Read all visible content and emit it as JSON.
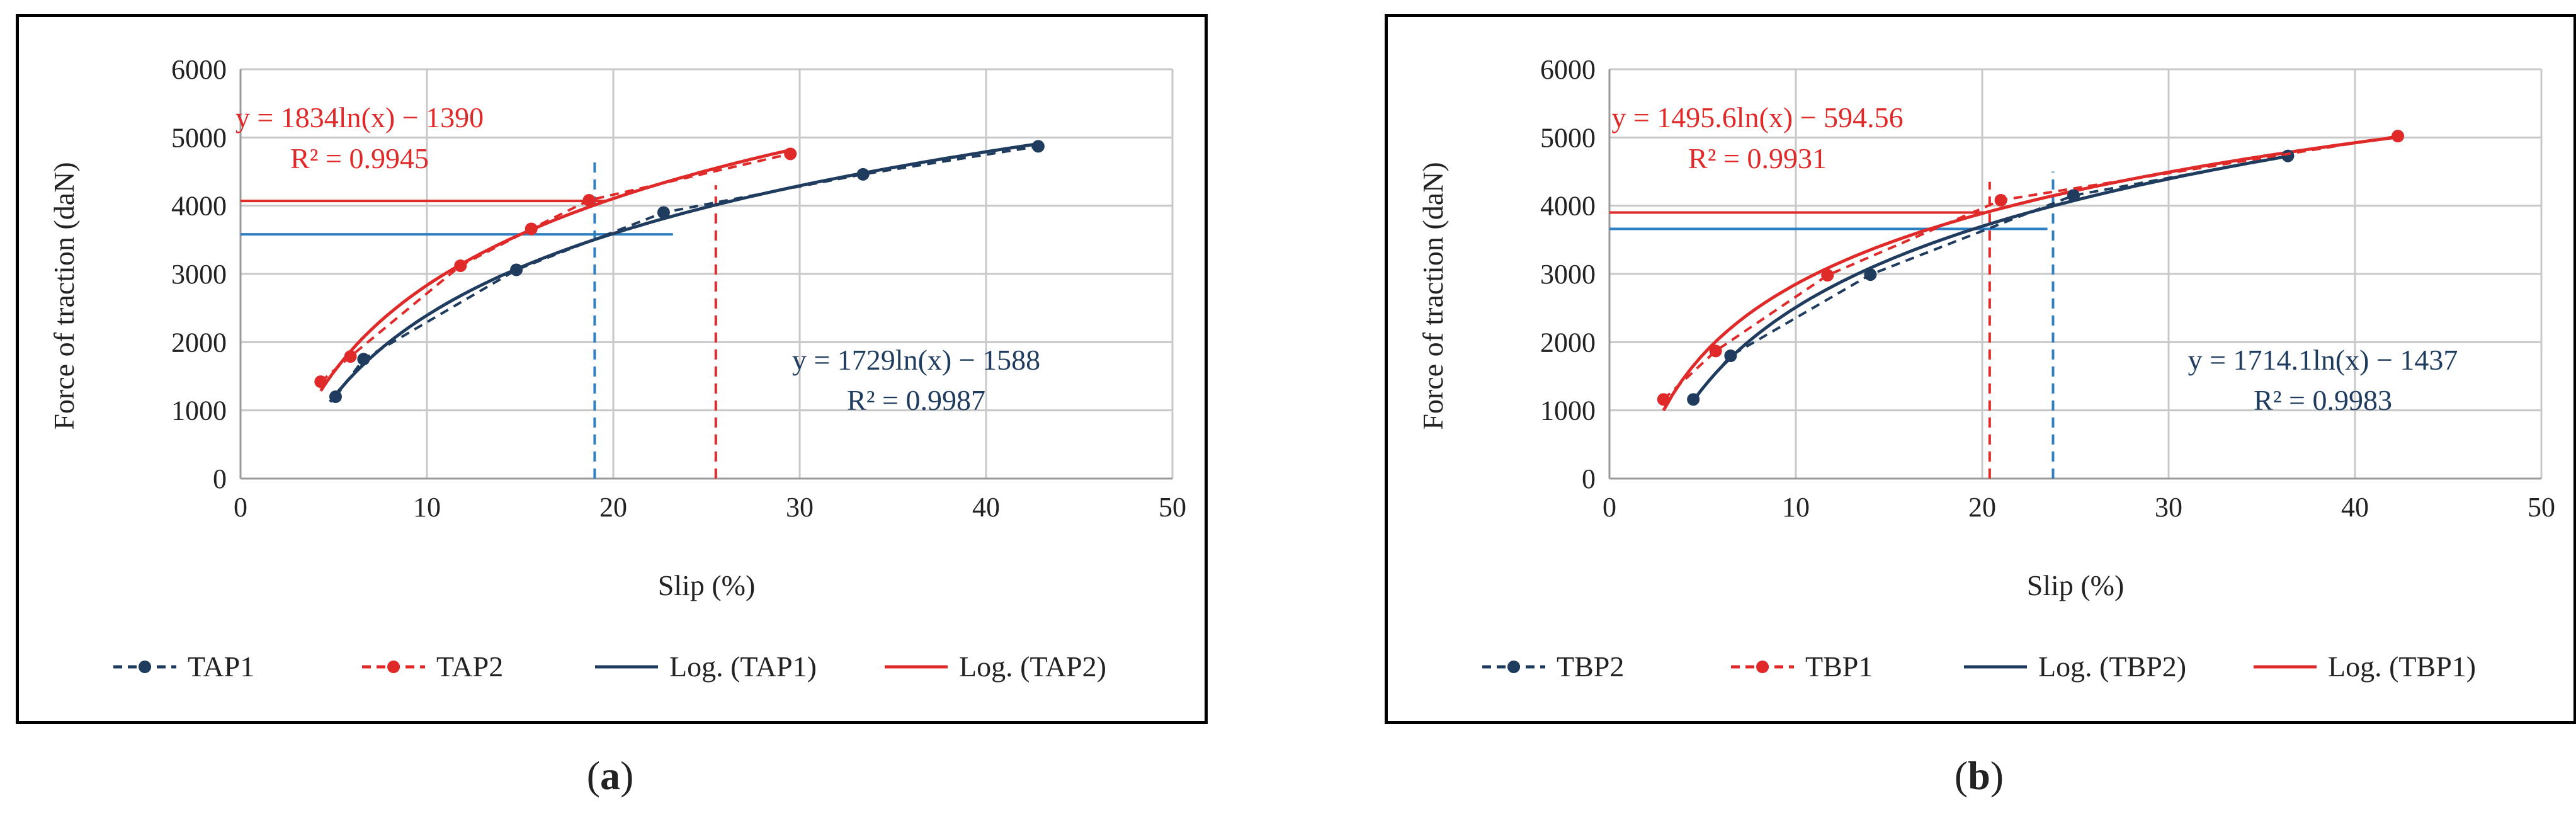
{
  "colors": {
    "blue": "#1f3c5f",
    "red": "#e02a2a",
    "light_blue": "#2f7fc1",
    "grid": "#c8c8c8"
  },
  "captions": [
    {
      "open": "(",
      "letter": "a",
      "close": ")"
    },
    {
      "open": "(",
      "letter": "b",
      "close": ")"
    }
  ],
  "chart_data": [
    {
      "type": "scatter",
      "panel": "a",
      "xlabel": "Slip (%)",
      "ylabel": "Force of traction (daN)",
      "xlim": [
        0,
        50
      ],
      "ylim": [
        0,
        6000
      ],
      "xticks": [
        0,
        10,
        20,
        30,
        40,
        50
      ],
      "yticks": [
        0,
        1000,
        2000,
        3000,
        4000,
        5000,
        6000
      ],
      "grid": true,
      "series": [
        {
          "name": "TAP1",
          "color": "#1f3c5f",
          "style": "dashed-markers",
          "x": [
            5.1,
            6.6,
            14.8,
            22.7,
            33.4,
            42.8
          ],
          "y": [
            1200,
            1750,
            3060,
            3900,
            4460,
            4870
          ]
        },
        {
          "name": "TAP2",
          "color": "#e02a2a",
          "style": "dashed-markers",
          "x": [
            4.3,
            5.9,
            11.8,
            15.6,
            18.7,
            29.5
          ],
          "y": [
            1420,
            1790,
            3120,
            3660,
            4080,
            4760
          ]
        }
      ],
      "trendlines": [
        {
          "name": "Log. (TAP1)",
          "color": "#1f3c5f",
          "a": 1729,
          "b": -1588,
          "x_range": [
            4.8,
            43
          ]
        },
        {
          "name": "Log. (TAP2)",
          "color": "#e02a2a",
          "a": 1834,
          "b": -1390,
          "x_range": [
            4.3,
            29.5
          ]
        }
      ],
      "legend": [
        "TAP1",
        "TAP2",
        "Log. (TAP1)",
        "Log. (TAP2)"
      ],
      "legend_position": "bottom",
      "equations": [
        {
          "equation": "y = 1834ln(x) − 1390",
          "r2": "R² = 0.9945",
          "color": "#e02a2a",
          "placement": "top-left"
        },
        {
          "equation": "y = 1729ln(x) − 1588",
          "r2": "R² = 0.9987",
          "color": "#1f3c5f",
          "placement": "right"
        }
      ],
      "reference_lines": [
        {
          "type": "vertical",
          "x": 19,
          "color": "#2f7fc1",
          "dashed": true,
          "y_range": [
            0,
            4650
          ]
        },
        {
          "type": "vertical",
          "x": 25.5,
          "color": "#e02a2a",
          "dashed": true,
          "y_range": [
            0,
            4300
          ]
        },
        {
          "type": "horizontal",
          "y": 3580,
          "color": "#2f7fc1",
          "dashed": false,
          "x_range": [
            0,
            23.2
          ]
        },
        {
          "type": "horizontal",
          "y": 4070,
          "color": "#e02a2a",
          "dashed": false,
          "x_range": [
            0,
            19.6
          ]
        }
      ]
    },
    {
      "type": "scatter",
      "panel": "b",
      "xlabel": "Slip (%)",
      "ylabel": "Force of traction (daN)",
      "xlim": [
        0,
        50
      ],
      "ylim": [
        0,
        6000
      ],
      "xticks": [
        0,
        10,
        20,
        30,
        40,
        50
      ],
      "yticks": [
        0,
        1000,
        2000,
        3000,
        4000,
        5000,
        6000
      ],
      "grid": true,
      "series": [
        {
          "name": "TBP2",
          "color": "#1f3c5f",
          "style": "dashed-markers",
          "x": [
            4.5,
            6.5,
            14.0,
            24.9,
            36.4
          ],
          "y": [
            1160,
            1800,
            2990,
            4150,
            4730
          ]
        },
        {
          "name": "TBP1",
          "color": "#e02a2a",
          "style": "dashed-markers",
          "x": [
            2.9,
            5.7,
            11.7,
            21.0,
            42.3
          ],
          "y": [
            1160,
            1870,
            2980,
            4080,
            5020
          ]
        }
      ],
      "trendlines": [
        {
          "name": "Log. (TBP2)",
          "color": "#1f3c5f",
          "a": 1714.1,
          "b": -1437,
          "x_range": [
            4.5,
            36.4
          ]
        },
        {
          "name": "Log. (TBP1)",
          "color": "#e02a2a",
          "a": 1495.6,
          "b": -594.56,
          "x_range": [
            2.9,
            42.3
          ]
        }
      ],
      "legend": [
        "TBP2",
        "TBP1",
        "Log. (TBP2)",
        "Log. (TBP1)"
      ],
      "legend_position": "bottom",
      "equations": [
        {
          "equation": "y = 1495.6ln(x) − 594.56",
          "r2": "R² = 0.9931",
          "color": "#e02a2a",
          "placement": "top-left"
        },
        {
          "equation": "y = 1714.1ln(x) − 1437",
          "r2": "R² = 0.9983",
          "color": "#1f3c5f",
          "placement": "right"
        }
      ],
      "reference_lines": [
        {
          "type": "vertical",
          "x": 20.4,
          "color": "#e02a2a",
          "dashed": true,
          "y_range": [
            0,
            4350
          ]
        },
        {
          "type": "vertical",
          "x": 23.8,
          "color": "#2f7fc1",
          "dashed": true,
          "y_range": [
            0,
            4500
          ]
        },
        {
          "type": "horizontal",
          "y": 3900,
          "color": "#e02a2a",
          "dashed": false,
          "x_range": [
            0,
            20.2
          ]
        },
        {
          "type": "horizontal",
          "y": 3660,
          "color": "#2f7fc1",
          "dashed": false,
          "x_range": [
            0,
            23.5
          ]
        }
      ]
    }
  ]
}
